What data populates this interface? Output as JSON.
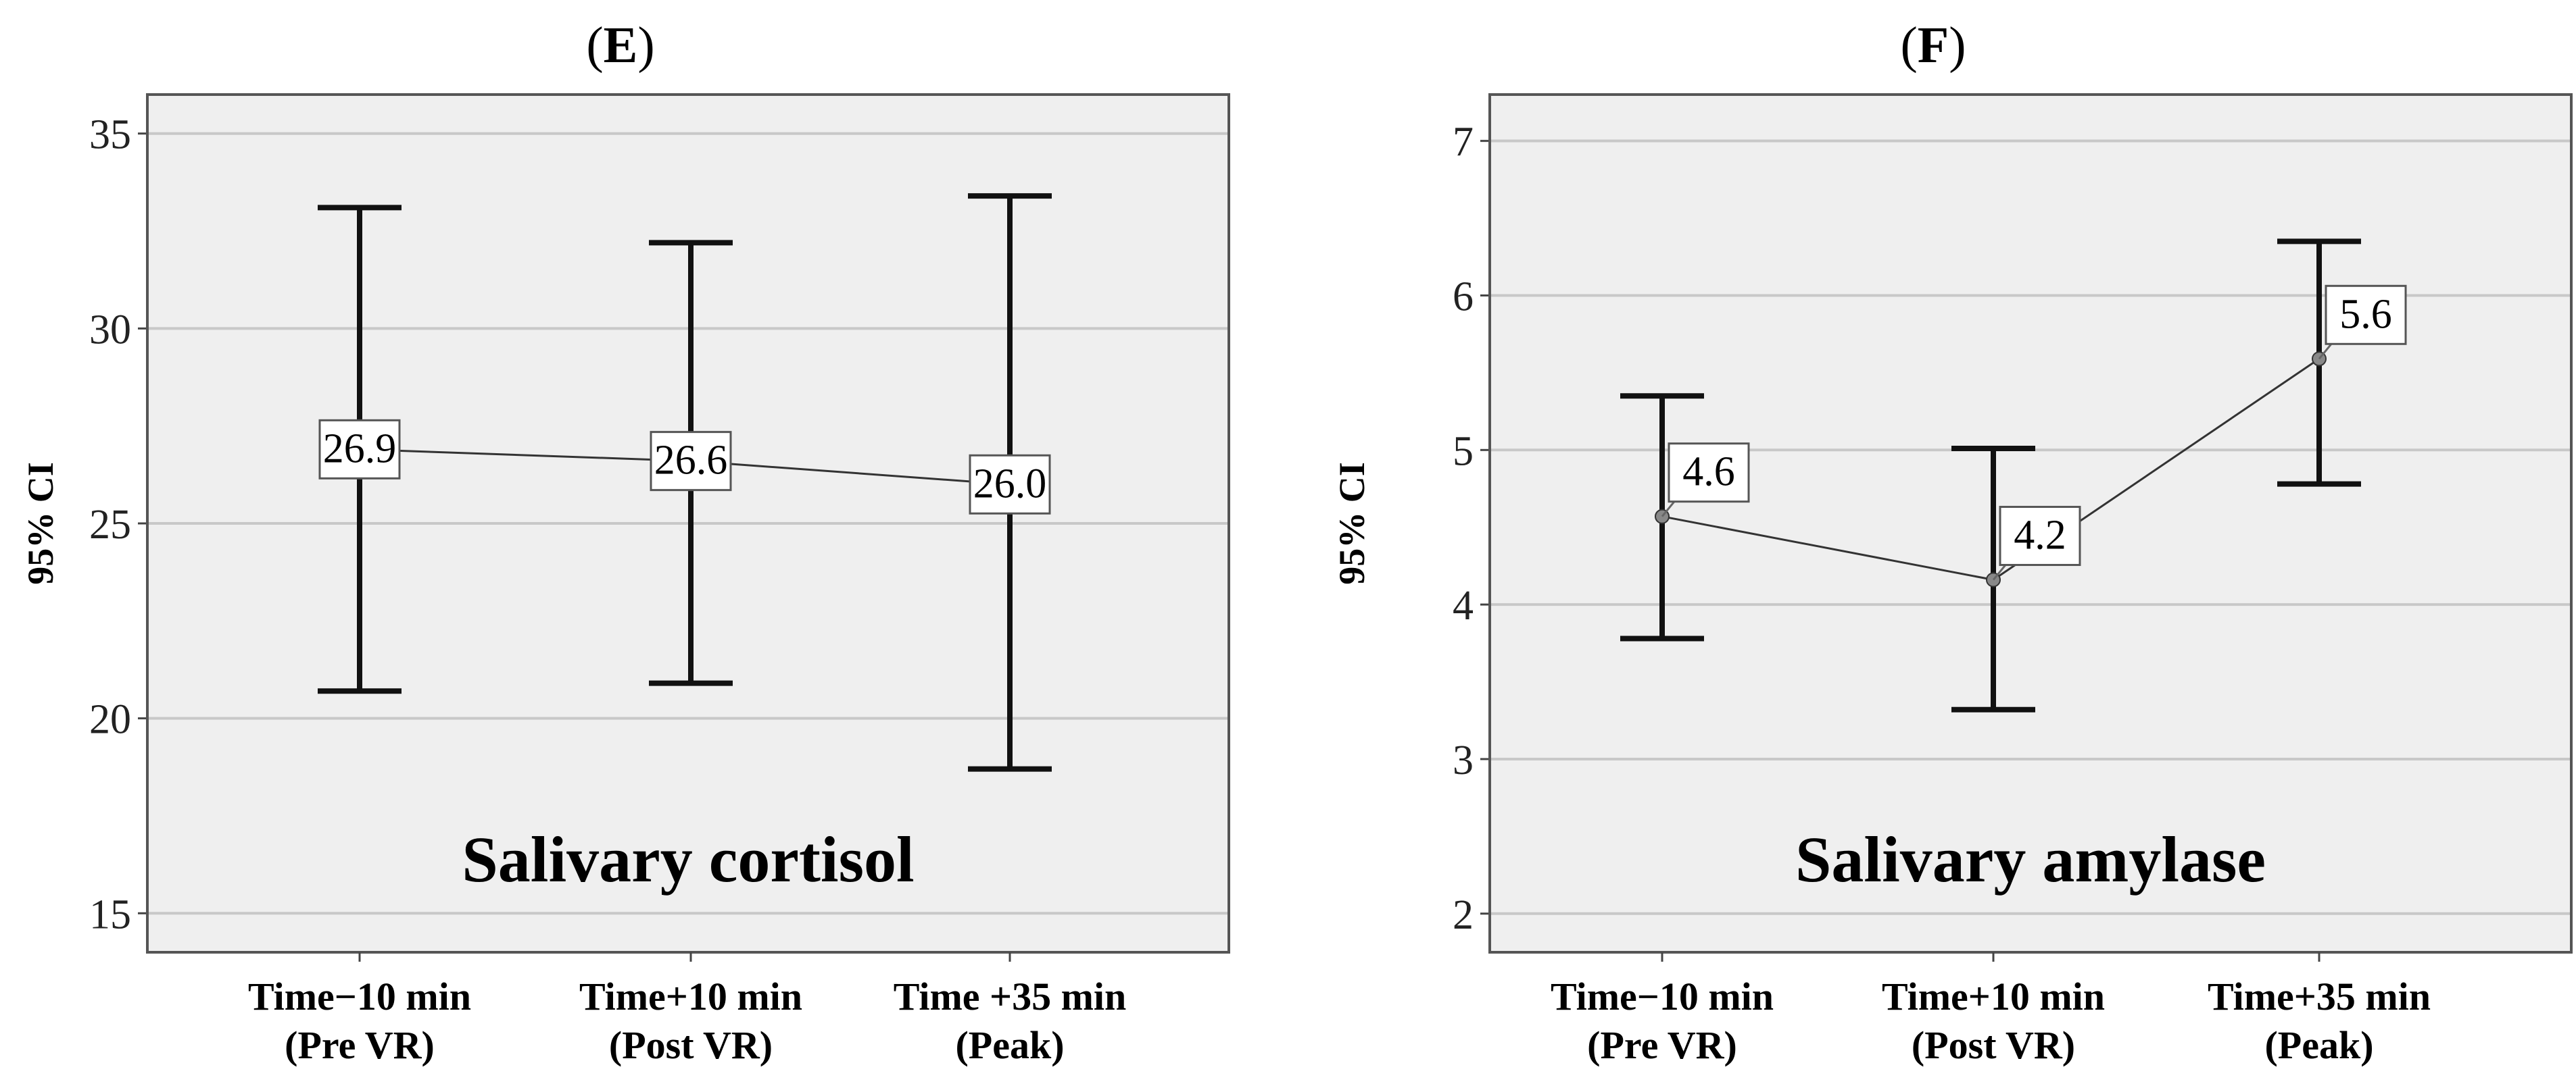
{
  "colors": {
    "plot_background": "#efefef",
    "gridline": "#c8c8c8",
    "error_bar": "#111111",
    "mean_line": "#333333",
    "label_box": "#ffffff",
    "label_border": "#555555"
  },
  "chart_data": [
    {
      "type": "line",
      "panel_label_parts": [
        "(",
        "E",
        ")"
      ],
      "title": "Salivary cortisol",
      "ylabel": "95% CI",
      "xlabel": "",
      "ylim": [
        14,
        36
      ],
      "yticks": [
        15,
        20,
        25,
        30,
        35
      ],
      "grid": true,
      "categories": [
        [
          "Time−10 min",
          "(Pre VR)"
        ],
        [
          "Time+10 min",
          "(Post VR)"
        ],
        [
          "Time +35 min",
          "(Peak)"
        ]
      ],
      "means": [
        26.9,
        26.6,
        26.0
      ],
      "mean_labels": [
        "26.9",
        "26.6",
        "26.0"
      ],
      "ci_lower": [
        20.7,
        20.9,
        18.7
      ],
      "ci_upper": [
        33.1,
        32.2,
        33.4
      ],
      "title_position": "bottom-center"
    },
    {
      "type": "line",
      "panel_label_parts": [
        "(",
        "F",
        ")"
      ],
      "title": "Salivary amylase",
      "ylabel": "95% CI",
      "xlabel": "",
      "ylim": [
        1.75,
        7.3
      ],
      "yticks": [
        2,
        3,
        4,
        5,
        6,
        7
      ],
      "grid": true,
      "categories": [
        [
          "Time−10 min",
          "(Pre VR)"
        ],
        [
          "Time+10 min",
          "(Post VR)"
        ],
        [
          "Time+35 min",
          "(Peak)"
        ]
      ],
      "means": [
        4.57,
        4.16,
        5.59
      ],
      "mean_labels": [
        "4.6",
        "4.2",
        "5.6"
      ],
      "ci_lower": [
        3.78,
        3.32,
        4.78
      ],
      "ci_upper": [
        5.35,
        5.01,
        6.35
      ],
      "title_position": "bottom-center"
    }
  ]
}
